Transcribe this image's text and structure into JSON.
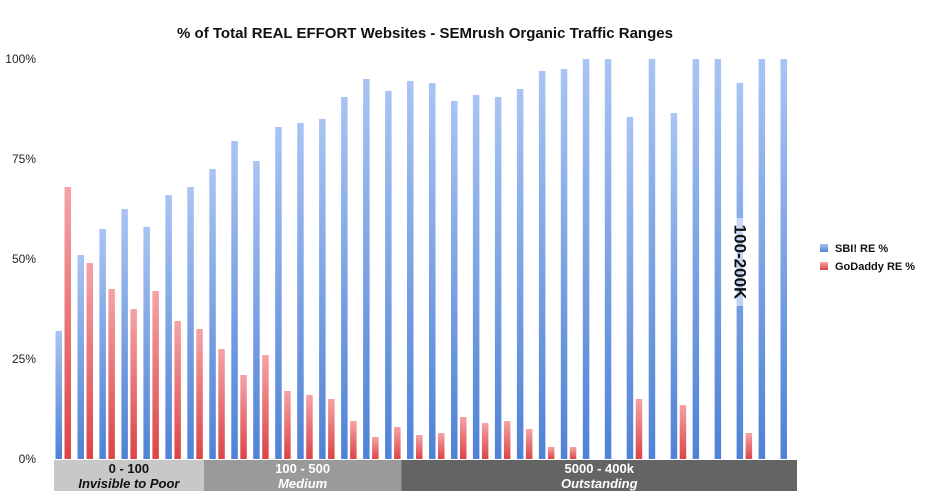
{
  "chart_data": {
    "type": "bar",
    "title": "% of Total REAL EFFORT Websites - SEMrush Organic Traffic Ranges",
    "ylim": [
      0,
      100
    ],
    "yticks": [
      "0%",
      "25%",
      "50%",
      "75%",
      "100%"
    ],
    "grid": false,
    "legend_position": "right",
    "series": [
      {
        "name": "SBI! RE %",
        "color": "#5b8fde",
        "values": [
          32,
          51,
          57.5,
          62.5,
          58,
          66,
          68,
          72.5,
          79.5,
          74.5,
          83,
          84,
          85,
          90.5,
          95,
          92,
          94.5,
          94,
          89.5,
          91,
          90.5,
          92.5,
          97,
          97.5,
          100,
          100,
          85.5,
          100,
          86.5,
          100,
          100,
          94,
          100,
          100
        ]
      },
      {
        "name": "GoDaddy RE %",
        "color": "#e04e50",
        "values": [
          68,
          49,
          42.5,
          37.5,
          42,
          34.5,
          32.5,
          27.5,
          21,
          26,
          17,
          16,
          15,
          9.5,
          5.5,
          8,
          6,
          6.5,
          10.5,
          9,
          9.5,
          7.5,
          3,
          3,
          0,
          0,
          15,
          0,
          13.5,
          0,
          0,
          6.5,
          0,
          0
        ]
      }
    ],
    "ranges": [
      {
        "label": "0 - 100",
        "sublabel": "Invisible to Poor",
        "start": 0,
        "end": 6,
        "color": "#c8c8c8",
        "text_color": "#111111"
      },
      {
        "label": "100 - 500",
        "sublabel": "Medium",
        "start": 7,
        "end": 15,
        "color": "#9a9a9a",
        "text_color": "#ffffff"
      },
      {
        "label": "5000 - 400k",
        "sublabel": "Outstanding",
        "start": 16,
        "end": 33,
        "color": "#646464",
        "text_color": "#ffffff"
      }
    ],
    "annotation": {
      "text": "100-200K",
      "index": 31
    }
  }
}
